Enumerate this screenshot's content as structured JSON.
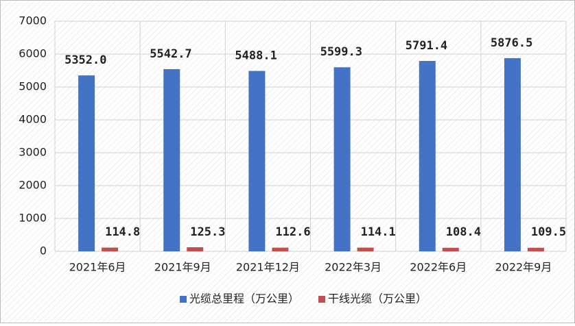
{
  "chart_data": {
    "type": "bar",
    "categories": [
      "2021年6月",
      "2021年9月",
      "2021年12月",
      "2022年3月",
      "2022年6月",
      "2022年9月"
    ],
    "series": [
      {
        "name": "光缆总里程（万公里）",
        "color": "#4472c4",
        "values": [
          5352.0,
          5542.7,
          5488.1,
          5599.3,
          5791.4,
          5876.5
        ],
        "value_labels": [
          "5352.0",
          "5542.7",
          "5488.1",
          "5599.3",
          "5791.4",
          "5876.5"
        ]
      },
      {
        "name": "干线光缆（万公里）",
        "color": "#c0504d",
        "values": [
          114.8,
          125.3,
          112.6,
          114.1,
          108.4,
          109.5
        ],
        "value_labels": [
          "114.8",
          "125.3",
          "112.6",
          "114.1",
          "108.4",
          "109.5"
        ]
      }
    ],
    "ylim": [
      0,
      7000
    ],
    "yticks": [
      0,
      1000,
      2000,
      3000,
      4000,
      5000,
      6000,
      7000
    ],
    "grid": true,
    "legend": "bottom"
  }
}
